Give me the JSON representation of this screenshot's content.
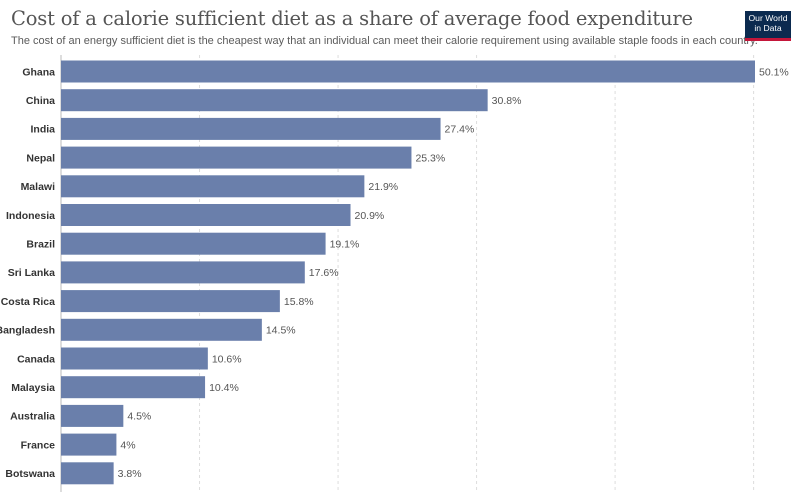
{
  "header": {
    "title": "Cost of a calorie sufficient diet as a share of average food expenditure",
    "subtitle": "The cost of an energy sufficient diet is the cheapest way that an individual can meet their calorie requirement using available staple foods in each country.",
    "logo_line1": "Our World",
    "logo_line2": "in Data"
  },
  "colors": {
    "bar": "#6a7fab",
    "grid": "#dddddd",
    "logo_bg": "#0b2a4f",
    "logo_accent": "#c4163a"
  },
  "chart_data": {
    "type": "bar",
    "orientation": "horizontal",
    "categories": [
      "Ghana",
      "China",
      "India",
      "Nepal",
      "Malawi",
      "Indonesia",
      "Brazil",
      "Sri Lanka",
      "Costa Rica",
      "Bangladesh",
      "Canada",
      "Malaysia",
      "Australia",
      "France",
      "Botswana"
    ],
    "values": [
      50.1,
      30.8,
      27.4,
      25.3,
      21.9,
      20.9,
      19.1,
      17.6,
      15.8,
      14.5,
      10.6,
      10.4,
      4.5,
      4,
      3.8
    ],
    "value_labels": [
      "50.1%",
      "30.8%",
      "27.4%",
      "25.3%",
      "21.9%",
      "20.9%",
      "19.1%",
      "17.6%",
      "15.8%",
      "14.5%",
      "10.6%",
      "10.4%",
      "4.5%",
      "4%",
      "3.8%"
    ],
    "xlim": [
      0,
      50.1
    ],
    "grid": true,
    "legend": "none"
  }
}
